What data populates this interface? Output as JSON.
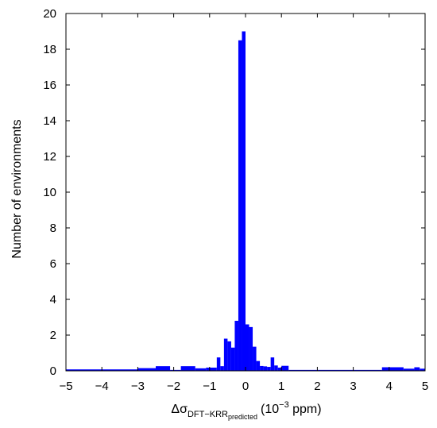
{
  "chart_data": {
    "type": "bar",
    "title": "",
    "ylabel": "Number of environments",
    "xlabel": {
      "base": "Δσ",
      "subscript": "DFT−KRR",
      "subsubscript": "predicted",
      "units": "(10",
      "exponent": "−3",
      "units_end": " ppm)"
    },
    "xlim": [
      -5,
      5
    ],
    "ylim": [
      0,
      20
    ],
    "xticks": [
      "−5",
      "−4",
      "−3",
      "−2",
      "−1",
      "0",
      "1",
      "2",
      "3",
      "4",
      "5"
    ],
    "yticks": [
      "0",
      "2",
      "4",
      "6",
      "8",
      "10",
      "12",
      "14",
      "16",
      "18",
      "20"
    ],
    "bar_color": "#0000ff",
    "bin_width": 0.1,
    "bins": [
      {
        "x0": -5.0,
        "x1": -3.0,
        "value": 0.08
      },
      {
        "x0": -3.0,
        "x1": -2.5,
        "value": 0.15
      },
      {
        "x0": -2.5,
        "x1": -2.1,
        "value": 0.26
      },
      {
        "x0": -2.1,
        "x1": -1.8,
        "value": 0.05
      },
      {
        "x0": -1.8,
        "x1": -1.4,
        "value": 0.26
      },
      {
        "x0": -1.4,
        "x1": -1.1,
        "value": 0.14
      },
      {
        "x0": -1.1,
        "x1": -0.8,
        "value": 0.18
      },
      {
        "x0": -0.8,
        "x1": -0.7,
        "value": 0.75
      },
      {
        "x0": -0.7,
        "x1": -0.6,
        "value": 0.26
      },
      {
        "x0": -0.6,
        "x1": -0.5,
        "value": 1.8
      },
      {
        "x0": -0.5,
        "x1": -0.4,
        "value": 1.65
      },
      {
        "x0": -0.4,
        "x1": -0.3,
        "value": 1.3
      },
      {
        "x0": -0.3,
        "x1": -0.2,
        "value": 2.8
      },
      {
        "x0": -0.2,
        "x1": -0.1,
        "value": 18.5
      },
      {
        "x0": -0.1,
        "x1": 0.0,
        "value": 19.0
      },
      {
        "x0": 0.0,
        "x1": 0.1,
        "value": 2.6
      },
      {
        "x0": 0.1,
        "x1": 0.2,
        "value": 2.45
      },
      {
        "x0": 0.2,
        "x1": 0.3,
        "value": 1.35
      },
      {
        "x0": 0.3,
        "x1": 0.4,
        "value": 0.55
      },
      {
        "x0": 0.4,
        "x1": 0.5,
        "value": 0.27
      },
      {
        "x0": 0.5,
        "x1": 0.6,
        "value": 0.25
      },
      {
        "x0": 0.6,
        "x1": 0.7,
        "value": 0.22
      },
      {
        "x0": 0.7,
        "x1": 0.8,
        "value": 0.75
      },
      {
        "x0": 0.8,
        "x1": 0.9,
        "value": 0.3
      },
      {
        "x0": 0.9,
        "x1": 1.0,
        "value": 0.18
      },
      {
        "x0": 1.0,
        "x1": 1.2,
        "value": 0.28
      },
      {
        "x0": 1.2,
        "x1": 3.8,
        "value": 0.05
      },
      {
        "x0": 3.8,
        "x1": 4.4,
        "value": 0.2
      },
      {
        "x0": 4.4,
        "x1": 4.7,
        "value": 0.12
      },
      {
        "x0": 4.7,
        "x1": 4.85,
        "value": 0.2
      },
      {
        "x0": 4.85,
        "x1": 5.0,
        "value": 0.12
      }
    ]
  }
}
